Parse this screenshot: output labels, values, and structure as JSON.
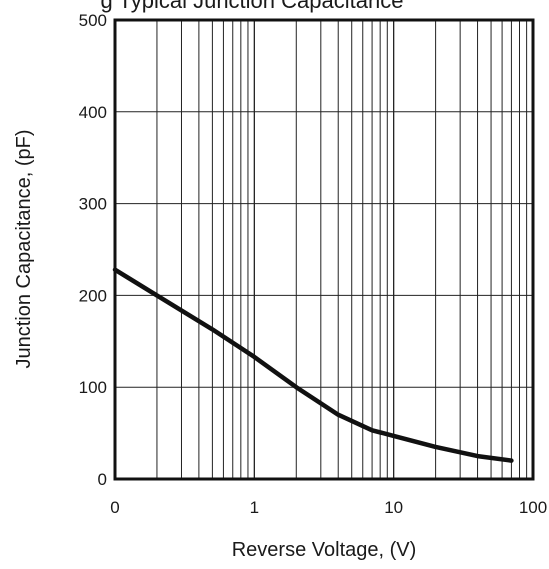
{
  "chart_data": {
    "type": "line",
    "title_partial": "g Typical Junction Capacitance",
    "xlabel": "Reverse Voltage, (V)",
    "ylabel": "Junction Capacitance, (pF)",
    "x_scale": "log",
    "x_plot_range": [
      0.1,
      100
    ],
    "ylim": [
      0,
      500
    ],
    "x_tick_labels": [
      {
        "value": 0.1,
        "label": "0"
      },
      {
        "value": 1,
        "label": "1"
      },
      {
        "value": 10,
        "label": "10"
      },
      {
        "value": 100,
        "label": "100"
      }
    ],
    "y_ticks": [
      0,
      100,
      200,
      300,
      400,
      500
    ],
    "grid": true,
    "line_color": "#111111",
    "series": [
      {
        "x": [
          0.1,
          0.2,
          0.5,
          1,
          2,
          4,
          7,
          10,
          20,
          40,
          70
        ],
        "y": [
          228,
          200,
          163,
          133,
          100,
          70,
          53,
          47,
          35,
          25,
          20
        ]
      }
    ]
  }
}
